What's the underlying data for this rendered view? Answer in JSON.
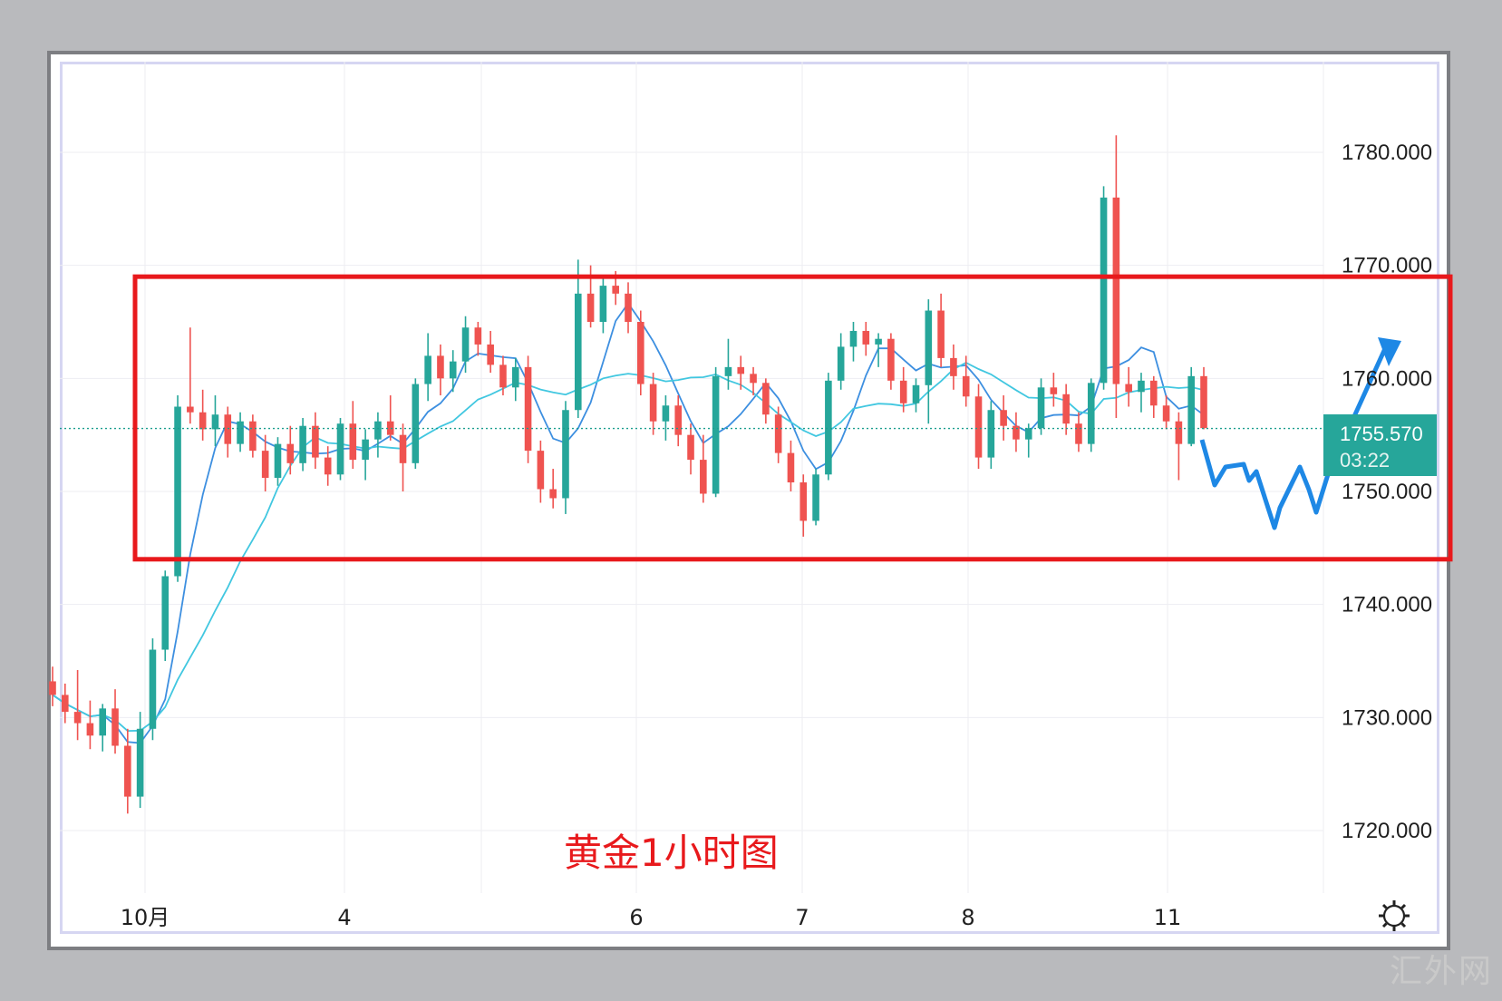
{
  "chart_data": {
    "type": "candlestick",
    "title": "黄金1小时图",
    "x_ticks": [
      "10月",
      "4",
      "6",
      "7",
      "8",
      "11"
    ],
    "y_ticks": [
      "1780.000",
      "1770.000",
      "1760.000",
      "1750.000",
      "1740.000",
      "1730.000",
      "1720.000"
    ],
    "ylim": [
      1714,
      1788
    ],
    "current_price": "1755.570",
    "countdown": "03:22",
    "range_box": {
      "upper": 1769.0,
      "lower": 1744.0
    },
    "grid": true,
    "ohlc_points": [
      [
        1733.2,
        1734.5,
        1731.0,
        1732.0
      ],
      [
        1732.0,
        1733.0,
        1729.5,
        1730.5
      ],
      [
        1730.5,
        1734.2,
        1728.0,
        1729.5
      ],
      [
        1729.5,
        1731.5,
        1727.2,
        1728.4
      ],
      [
        1728.4,
        1731.2,
        1727.0,
        1730.8
      ],
      [
        1730.8,
        1732.5,
        1726.8,
        1727.5
      ],
      [
        1727.5,
        1729.0,
        1721.5,
        1723.0
      ],
      [
        1723.0,
        1730.5,
        1722.0,
        1729.0
      ],
      [
        1729.0,
        1737.0,
        1728.0,
        1736.0
      ],
      [
        1736.0,
        1743.0,
        1735.0,
        1742.5
      ],
      [
        1742.5,
        1758.5,
        1742.0,
        1757.5
      ],
      [
        1757.5,
        1764.5,
        1756.0,
        1757.0
      ],
      [
        1757.0,
        1759.0,
        1754.5,
        1755.5
      ],
      [
        1755.5,
        1758.5,
        1754.0,
        1756.8
      ],
      [
        1756.8,
        1757.5,
        1753.0,
        1754.2
      ],
      [
        1754.2,
        1757.0,
        1753.5,
        1756.2
      ],
      [
        1756.2,
        1756.8,
        1753.0,
        1753.6
      ],
      [
        1753.6,
        1755.0,
        1750.0,
        1751.2
      ],
      [
        1751.2,
        1754.8,
        1750.5,
        1754.2
      ],
      [
        1754.2,
        1755.8,
        1751.5,
        1752.5
      ],
      [
        1752.5,
        1756.5,
        1751.8,
        1755.8
      ],
      [
        1755.8,
        1757.0,
        1752.0,
        1753.0
      ],
      [
        1753.0,
        1754.0,
        1750.5,
        1751.5
      ],
      [
        1751.5,
        1756.5,
        1751.0,
        1756.0
      ],
      [
        1756.0,
        1758.0,
        1752.0,
        1752.8
      ],
      [
        1752.8,
        1755.5,
        1751.0,
        1754.6
      ],
      [
        1754.6,
        1757.0,
        1753.0,
        1756.2
      ],
      [
        1756.2,
        1758.5,
        1754.5,
        1755.0
      ],
      [
        1755.0,
        1756.0,
        1750.0,
        1752.5
      ],
      [
        1752.5,
        1760.0,
        1752.0,
        1759.5
      ],
      [
        1759.5,
        1764.0,
        1758.0,
        1762.0
      ],
      [
        1762.0,
        1763.0,
        1758.5,
        1760.0
      ],
      [
        1760.0,
        1762.5,
        1758.8,
        1761.5
      ],
      [
        1761.5,
        1765.5,
        1760.5,
        1764.5
      ],
      [
        1764.5,
        1765.0,
        1762.0,
        1763.0
      ],
      [
        1763.0,
        1764.2,
        1760.5,
        1761.2
      ],
      [
        1761.2,
        1762.0,
        1758.5,
        1759.2
      ],
      [
        1759.2,
        1761.8,
        1758.0,
        1761.0
      ],
      [
        1761.0,
        1762.0,
        1752.5,
        1753.6
      ],
      [
        1753.6,
        1754.5,
        1749.0,
        1750.2
      ],
      [
        1750.2,
        1752.0,
        1748.5,
        1749.4
      ],
      [
        1749.4,
        1758.0,
        1748.0,
        1757.2
      ],
      [
        1757.2,
        1770.5,
        1756.5,
        1767.5
      ],
      [
        1767.5,
        1770.0,
        1764.5,
        1765.0
      ],
      [
        1765.0,
        1769.0,
        1764.0,
        1768.2
      ],
      [
        1768.2,
        1769.5,
        1766.5,
        1767.5
      ],
      [
        1767.5,
        1768.5,
        1764.0,
        1765.0
      ],
      [
        1765.0,
        1766.0,
        1758.5,
        1759.5
      ],
      [
        1759.5,
        1760.5,
        1755.0,
        1756.2
      ],
      [
        1756.2,
        1758.5,
        1754.5,
        1757.6
      ],
      [
        1757.6,
        1758.5,
        1754.0,
        1755.0
      ],
      [
        1755.0,
        1756.0,
        1751.5,
        1752.8
      ],
      [
        1752.8,
        1755.0,
        1749.0,
        1749.8
      ],
      [
        1749.8,
        1761.0,
        1749.5,
        1760.2
      ],
      [
        1760.2,
        1763.5,
        1759.0,
        1761.0
      ],
      [
        1761.0,
        1762.0,
        1759.0,
        1760.4
      ],
      [
        1760.4,
        1761.0,
        1758.5,
        1759.6
      ],
      [
        1759.6,
        1760.0,
        1756.0,
        1756.8
      ],
      [
        1756.8,
        1757.5,
        1752.5,
        1753.4
      ],
      [
        1753.4,
        1754.5,
        1750.0,
        1750.8
      ],
      [
        1750.8,
        1751.5,
        1746.0,
        1747.4
      ],
      [
        1747.4,
        1752.0,
        1747.0,
        1751.5
      ],
      [
        1751.5,
        1760.5,
        1751.0,
        1759.8
      ],
      [
        1759.8,
        1764.0,
        1759.0,
        1762.8
      ],
      [
        1762.8,
        1765.0,
        1761.5,
        1764.2
      ],
      [
        1764.2,
        1765.0,
        1762.0,
        1763.0
      ],
      [
        1763.0,
        1764.0,
        1761.0,
        1763.5
      ],
      [
        1763.5,
        1764.0,
        1759.0,
        1759.8
      ],
      [
        1759.8,
        1761.0,
        1757.0,
        1757.8
      ],
      [
        1757.8,
        1760.0,
        1757.0,
        1759.4
      ],
      [
        1759.4,
        1767.0,
        1756.0,
        1766.0
      ],
      [
        1766.0,
        1767.5,
        1761.0,
        1761.8
      ],
      [
        1761.8,
        1763.0,
        1759.0,
        1760.2
      ],
      [
        1760.2,
        1762.0,
        1757.5,
        1758.4
      ],
      [
        1758.4,
        1759.5,
        1752.0,
        1753.0
      ],
      [
        1753.0,
        1758.0,
        1752.0,
        1757.2
      ],
      [
        1757.2,
        1758.5,
        1754.5,
        1755.8
      ],
      [
        1755.8,
        1757.0,
        1753.5,
        1754.6
      ],
      [
        1754.6,
        1756.0,
        1753.0,
        1755.6
      ],
      [
        1755.6,
        1760.0,
        1755.0,
        1759.2
      ],
      [
        1759.2,
        1760.5,
        1757.5,
        1758.6
      ],
      [
        1758.6,
        1759.5,
        1755.0,
        1756.0
      ],
      [
        1756.0,
        1757.0,
        1753.5,
        1754.2
      ],
      [
        1754.2,
        1760.0,
        1753.5,
        1759.6
      ],
      [
        1759.6,
        1777.0,
        1759.0,
        1776.0
      ],
      [
        1776.0,
        1781.5,
        1756.5,
        1759.5
      ],
      [
        1759.5,
        1761.0,
        1757.5,
        1758.8
      ],
      [
        1758.8,
        1760.5,
        1757.0,
        1759.8
      ],
      [
        1759.8,
        1760.2,
        1756.5,
        1757.6
      ],
      [
        1757.6,
        1758.5,
        1755.5,
        1756.2
      ],
      [
        1756.2,
        1757.0,
        1751.0,
        1754.2
      ],
      [
        1754.2,
        1761.0,
        1754.0,
        1760.2
      ],
      [
        1760.2,
        1761.0,
        1755.5,
        1755.6
      ]
    ]
  }
}
